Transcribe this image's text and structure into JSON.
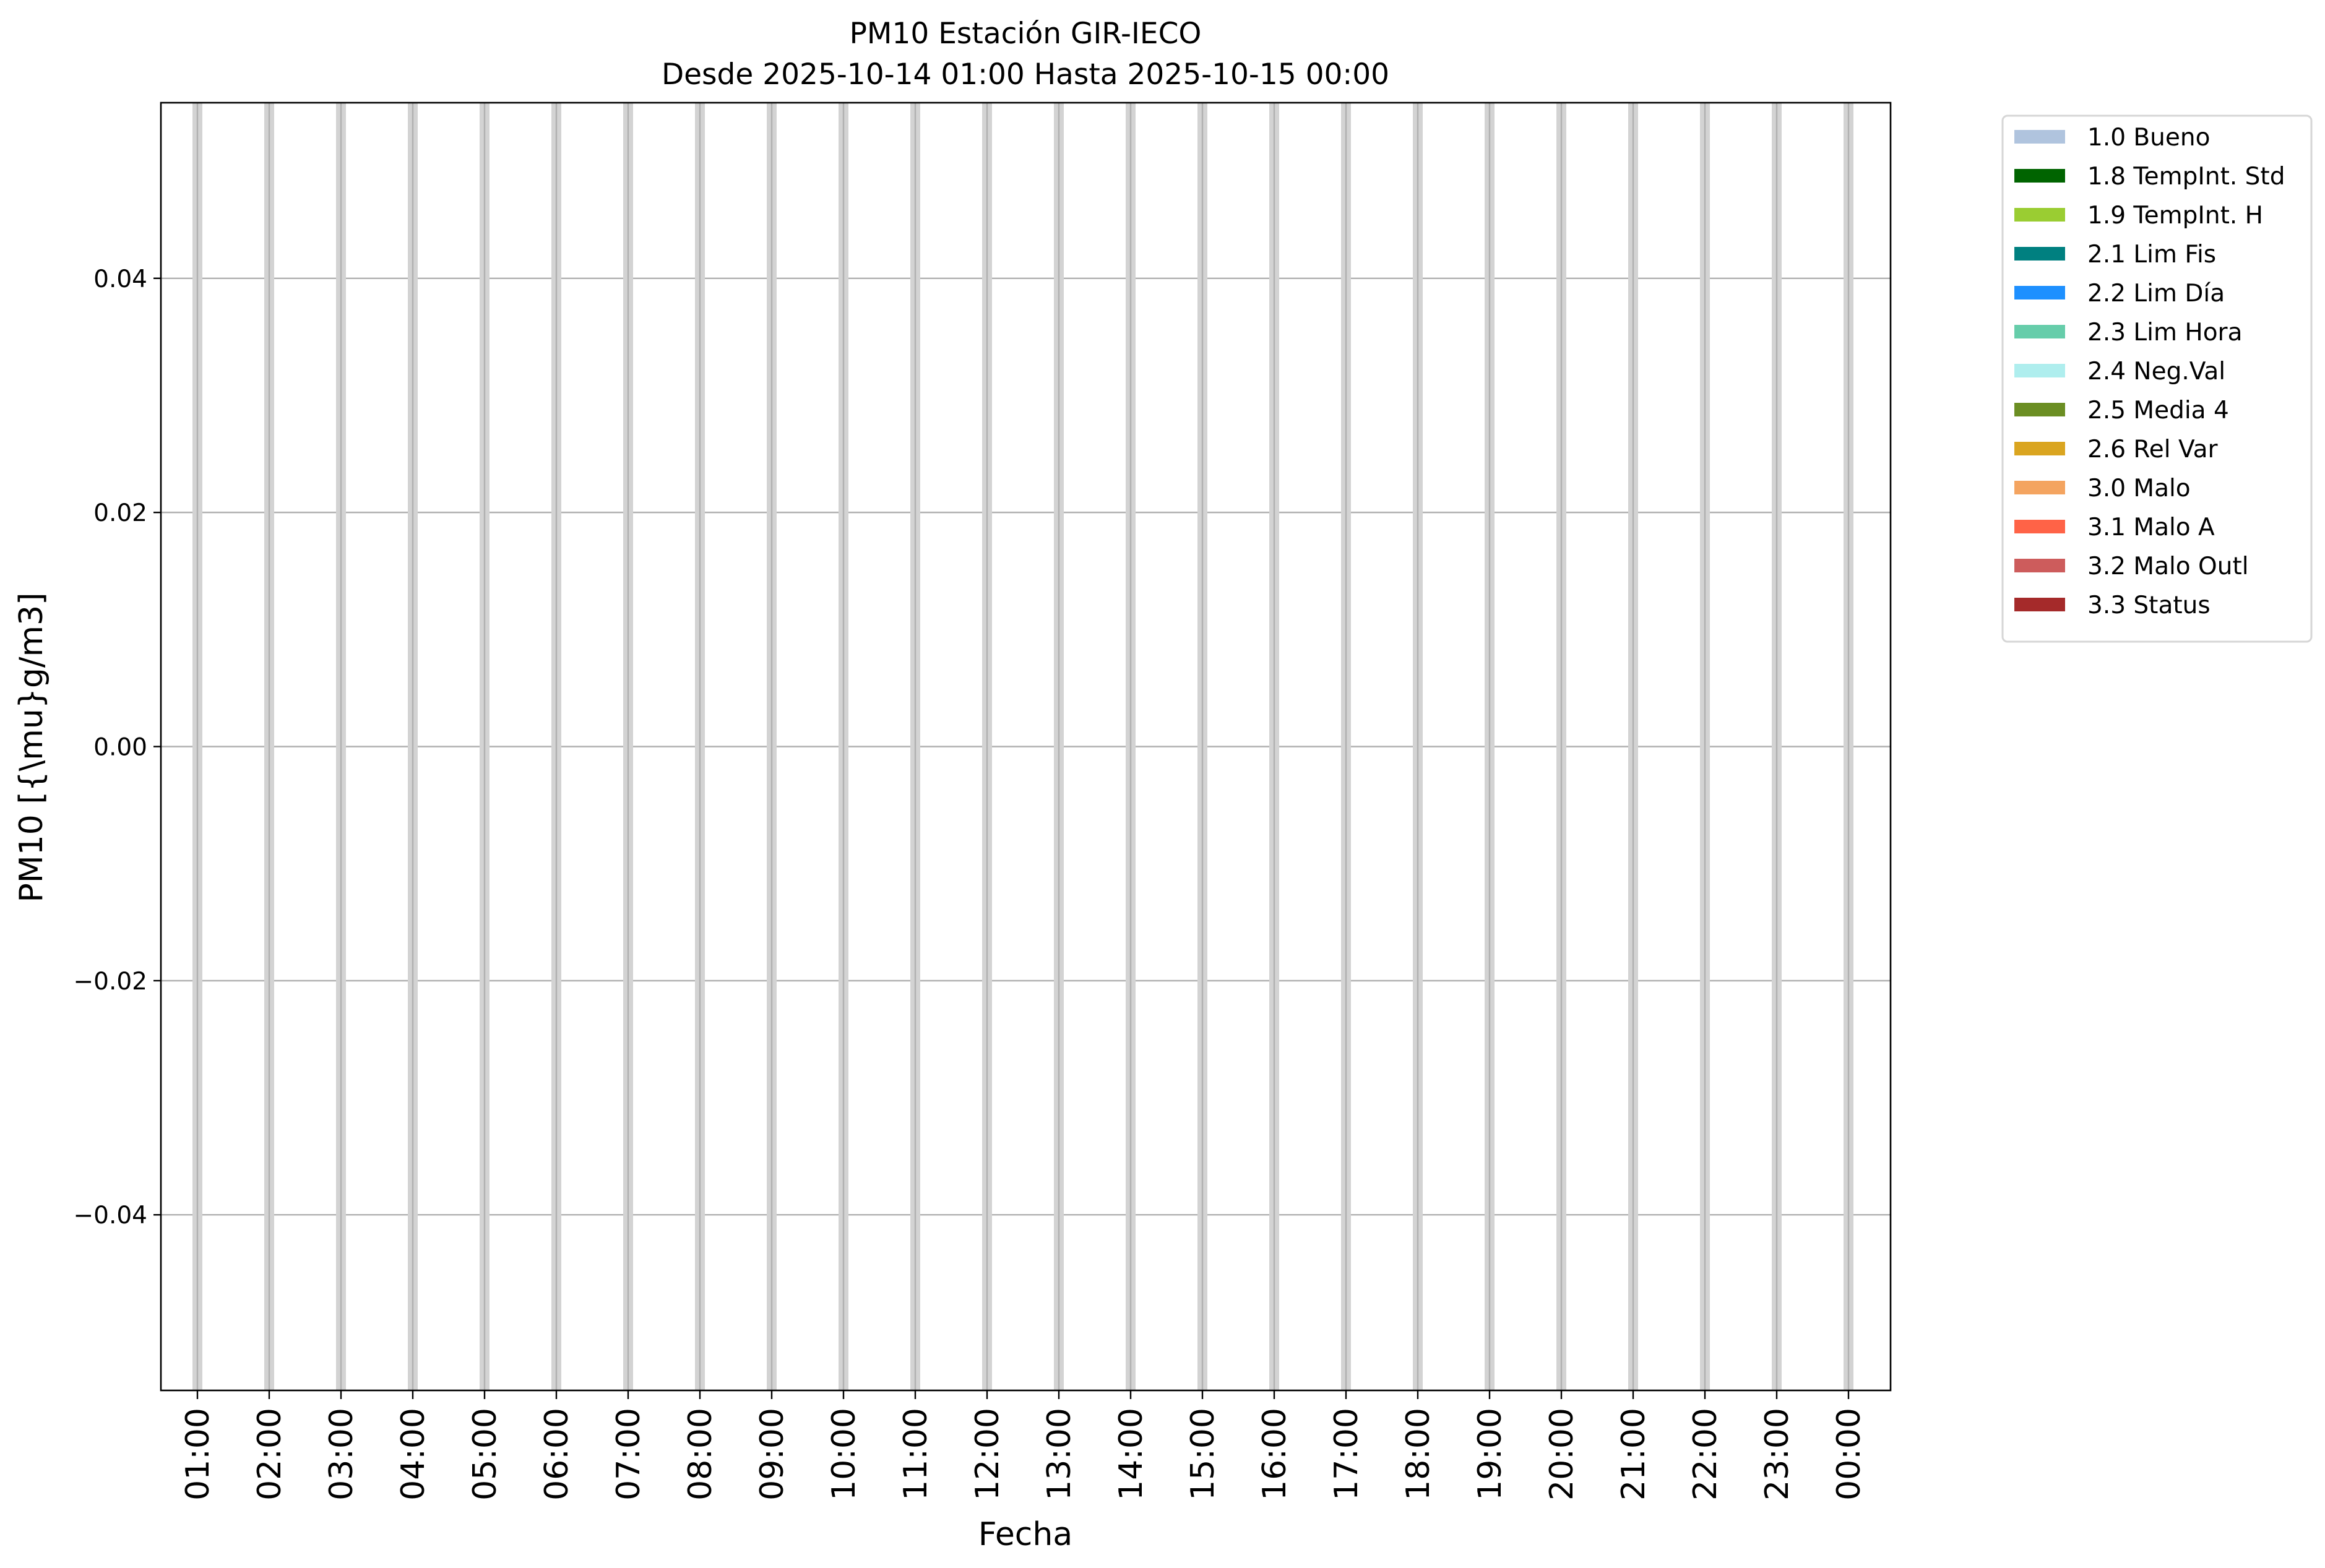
{
  "chart_data": {
    "type": "bar",
    "title": "PM10 Estación GIR-IECO",
    "subtitle": "Desde 2025-10-14 01:00 Hasta 2025-10-15 00:00",
    "xlabel": "Fecha",
    "ylabel": "PM10 [{\\mu}g/m3]",
    "categories": [
      "01:00",
      "02:00",
      "03:00",
      "04:00",
      "05:00",
      "06:00",
      "07:00",
      "08:00",
      "09:00",
      "10:00",
      "11:00",
      "12:00",
      "13:00",
      "14:00",
      "15:00",
      "16:00",
      "17:00",
      "18:00",
      "19:00",
      "20:00",
      "21:00",
      "22:00",
      "23:00",
      "00:00"
    ],
    "values": [
      0,
      0,
      0,
      0,
      0,
      0,
      0,
      0,
      0,
      0,
      0,
      0,
      0,
      0,
      0,
      0,
      0,
      0,
      0,
      0,
      0,
      0,
      0,
      0
    ],
    "ylim": [
      -0.055,
      0.055
    ],
    "yticks": [
      "0.04",
      "0.02",
      "0.00",
      "−0.02",
      "−0.04"
    ],
    "ytick_values": [
      0.04,
      0.02,
      0.0,
      -0.02,
      -0.04
    ],
    "grid": true,
    "legend_placement": "outside-top-right",
    "legend": [
      {
        "label": "1.0 Bueno",
        "color": "#b0c4de"
      },
      {
        "label": "1.8 TempInt. Std",
        "color": "#006400"
      },
      {
        "label": "1.9 TempInt. H",
        "color": "#9acd32"
      },
      {
        "label": "2.1 Lim Fis",
        "color": "#008080"
      },
      {
        "label": "2.2 Lim Día",
        "color": "#1e90ff"
      },
      {
        "label": "2.3 Lim Hora",
        "color": "#66cdaa"
      },
      {
        "label": "2.4 Neg.Val",
        "color": "#afeeee"
      },
      {
        "label": "2.5 Media 4",
        "color": "#6b8e23"
      },
      {
        "label": "2.6 Rel Var",
        "color": "#daa520"
      },
      {
        "label": "3.0 Malo",
        "color": "#f4a460"
      },
      {
        "label": "3.1 Malo A",
        "color": "#ff6347"
      },
      {
        "label": "3.2 Malo Outl",
        "color": "#cd5c5c"
      },
      {
        "label": "3.3 Status",
        "color": "#a52a2a"
      }
    ]
  }
}
